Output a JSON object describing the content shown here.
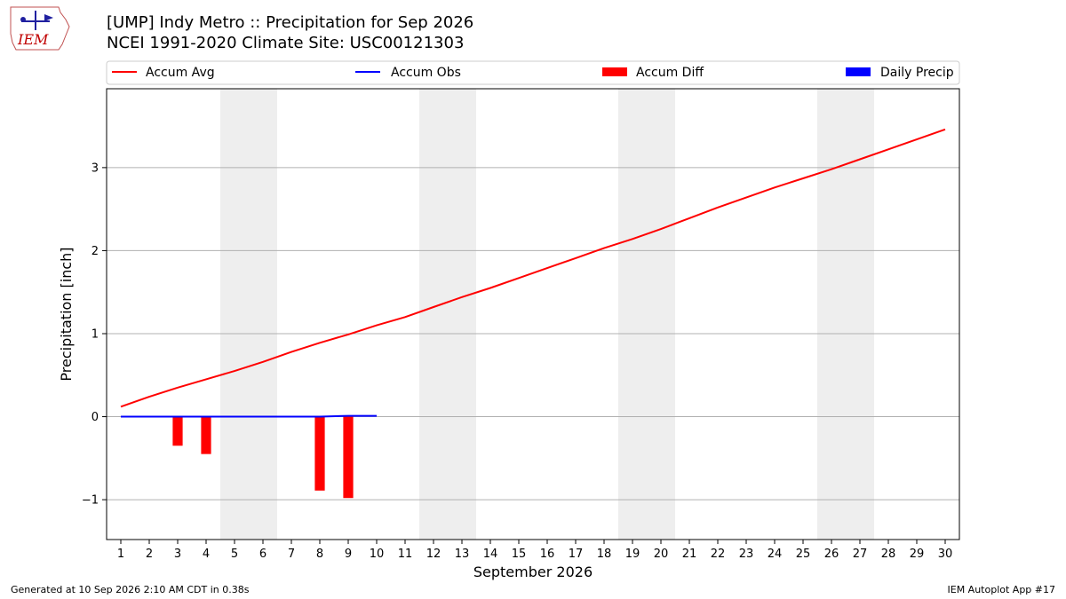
{
  "header": {
    "title": "[UMP] Indy Metro :: Precipitation for Sep 2026",
    "subtitle": "NCEI 1991-2020 Climate Site: USC00121303",
    "logo_text": "IEM"
  },
  "footer": {
    "generated": "Generated at 10 Sep 2026 2:10 AM CDT in 0.38s",
    "app": "IEM Autoplot App #17"
  },
  "colors": {
    "accum_avg": "#ff0000",
    "accum_obs": "#0000ff",
    "accum_diff": "#ff0000",
    "daily_precip": "#0000ff",
    "weekend_shade": "#eeeeee",
    "grid": "#b0b0b0"
  },
  "chart_data": {
    "type": "bar",
    "title": "[UMP] Indy Metro :: Precipitation for Sep 2026",
    "subtitle": "NCEI 1991-2020 Climate Site: USC00121303",
    "xlabel": "September 2026",
    "ylabel": "Precipitation [inch]",
    "x": [
      1,
      2,
      3,
      4,
      5,
      6,
      7,
      8,
      9,
      10,
      11,
      12,
      13,
      14,
      15,
      16,
      17,
      18,
      19,
      20,
      21,
      22,
      23,
      24,
      25,
      26,
      27,
      28,
      29,
      30
    ],
    "x_tick_labels": [
      "1",
      "2",
      "3",
      "4",
      "5",
      "6",
      "7",
      "8",
      "9",
      "10",
      "11",
      "12",
      "13",
      "14",
      "15",
      "16",
      "17",
      "18",
      "19",
      "20",
      "21",
      "22",
      "23",
      "24",
      "25",
      "26",
      "27",
      "28",
      "29",
      "30"
    ],
    "xlim": [
      0.5,
      30.5
    ],
    "ylim": [
      -1.48,
      3.95
    ],
    "y_ticks": [
      -1,
      0,
      1,
      2,
      3
    ],
    "y_tick_labels": [
      "−1",
      "0",
      "1",
      "2",
      "3"
    ],
    "grid": "y",
    "legend_position": "top",
    "legend": [
      "Accum Avg",
      "Accum Obs",
      "Accum Diff",
      "Daily Precip"
    ],
    "weekend_days": [
      5,
      6,
      12,
      13,
      19,
      20,
      26,
      27
    ],
    "series": [
      {
        "name": "Accum Avg",
        "type": "line",
        "x": [
          1,
          2,
          3,
          4,
          5,
          6,
          7,
          8,
          9,
          10,
          11,
          12,
          13,
          14,
          15,
          16,
          17,
          18,
          19,
          20,
          21,
          22,
          23,
          24,
          25,
          26,
          27,
          28,
          29,
          30
        ],
        "values": [
          0.12,
          0.24,
          0.35,
          0.45,
          0.55,
          0.66,
          0.78,
          0.89,
          0.99,
          1.1,
          1.2,
          1.32,
          1.44,
          1.55,
          1.67,
          1.79,
          1.91,
          2.03,
          2.14,
          2.26,
          2.39,
          2.52,
          2.64,
          2.76,
          2.87,
          2.98,
          3.1,
          3.22,
          3.34,
          3.46
        ]
      },
      {
        "name": "Accum Obs",
        "type": "line",
        "x": [
          1,
          2,
          3,
          4,
          5,
          6,
          7,
          8,
          9,
          10
        ],
        "values": [
          0,
          0,
          0,
          0,
          0,
          0,
          0,
          0,
          0.01,
          0.01
        ]
      },
      {
        "name": "Accum Diff",
        "type": "bar",
        "x": [
          3,
          4,
          8,
          9
        ],
        "values": [
          -0.35,
          -0.45,
          -0.89,
          -0.98
        ]
      },
      {
        "name": "Daily Precip",
        "type": "bar",
        "x": [],
        "values": []
      }
    ]
  }
}
